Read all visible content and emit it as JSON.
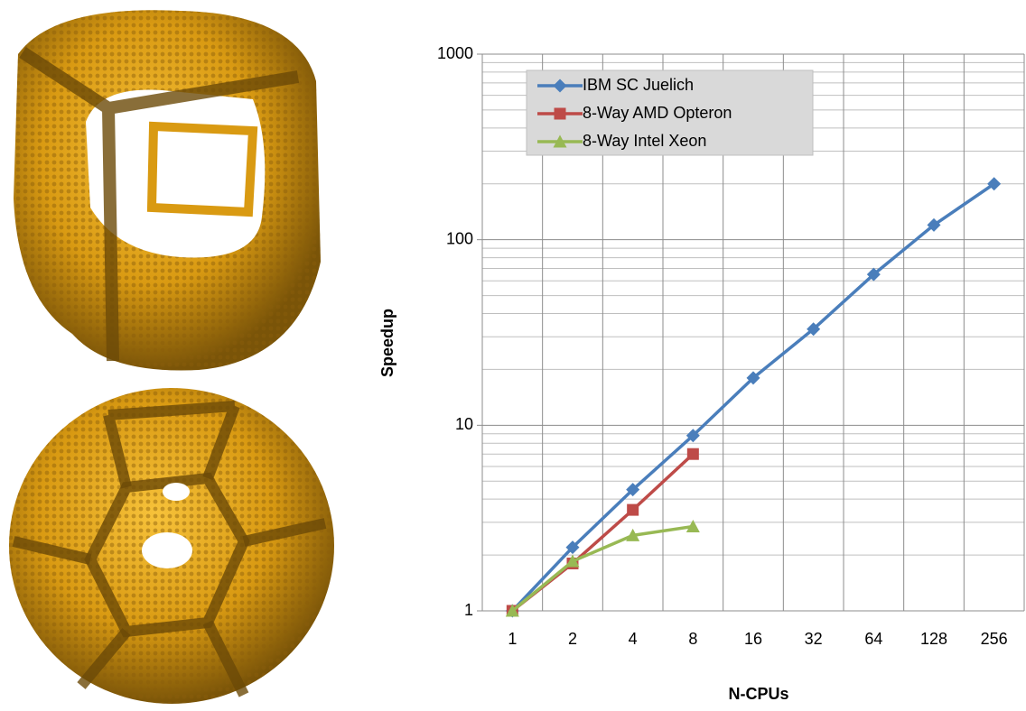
{
  "chart_data": {
    "type": "line",
    "y_label": "Speedup",
    "x_label": "N-CPUs",
    "categories": [
      "1",
      "2",
      "4",
      "8",
      "16",
      "32",
      "64",
      "128",
      "256"
    ],
    "series": [
      {
        "name": "IBM SC Juelich",
        "color": "#4a7ebb",
        "marker": "diamond",
        "values": [
          1,
          2.2,
          4.5,
          8.8,
          18,
          33,
          65,
          120,
          200
        ]
      },
      {
        "name": "8-Way AMD Opteron",
        "color": "#be4b48",
        "marker": "square",
        "values": [
          1,
          1.8,
          3.5,
          7,
          null,
          null,
          null,
          null,
          null
        ]
      },
      {
        "name": "8-Way Intel Xeon",
        "color": "#98b954",
        "marker": "triangle",
        "values": [
          1,
          1.85,
          2.55,
          2.85,
          null,
          null,
          null,
          null,
          null
        ]
      }
    ],
    "ylim": [
      1,
      1000
    ],
    "yticks": [
      1,
      10,
      100,
      1000
    ],
    "log_y": true,
    "grid": true,
    "legend": "upper-left"
  }
}
